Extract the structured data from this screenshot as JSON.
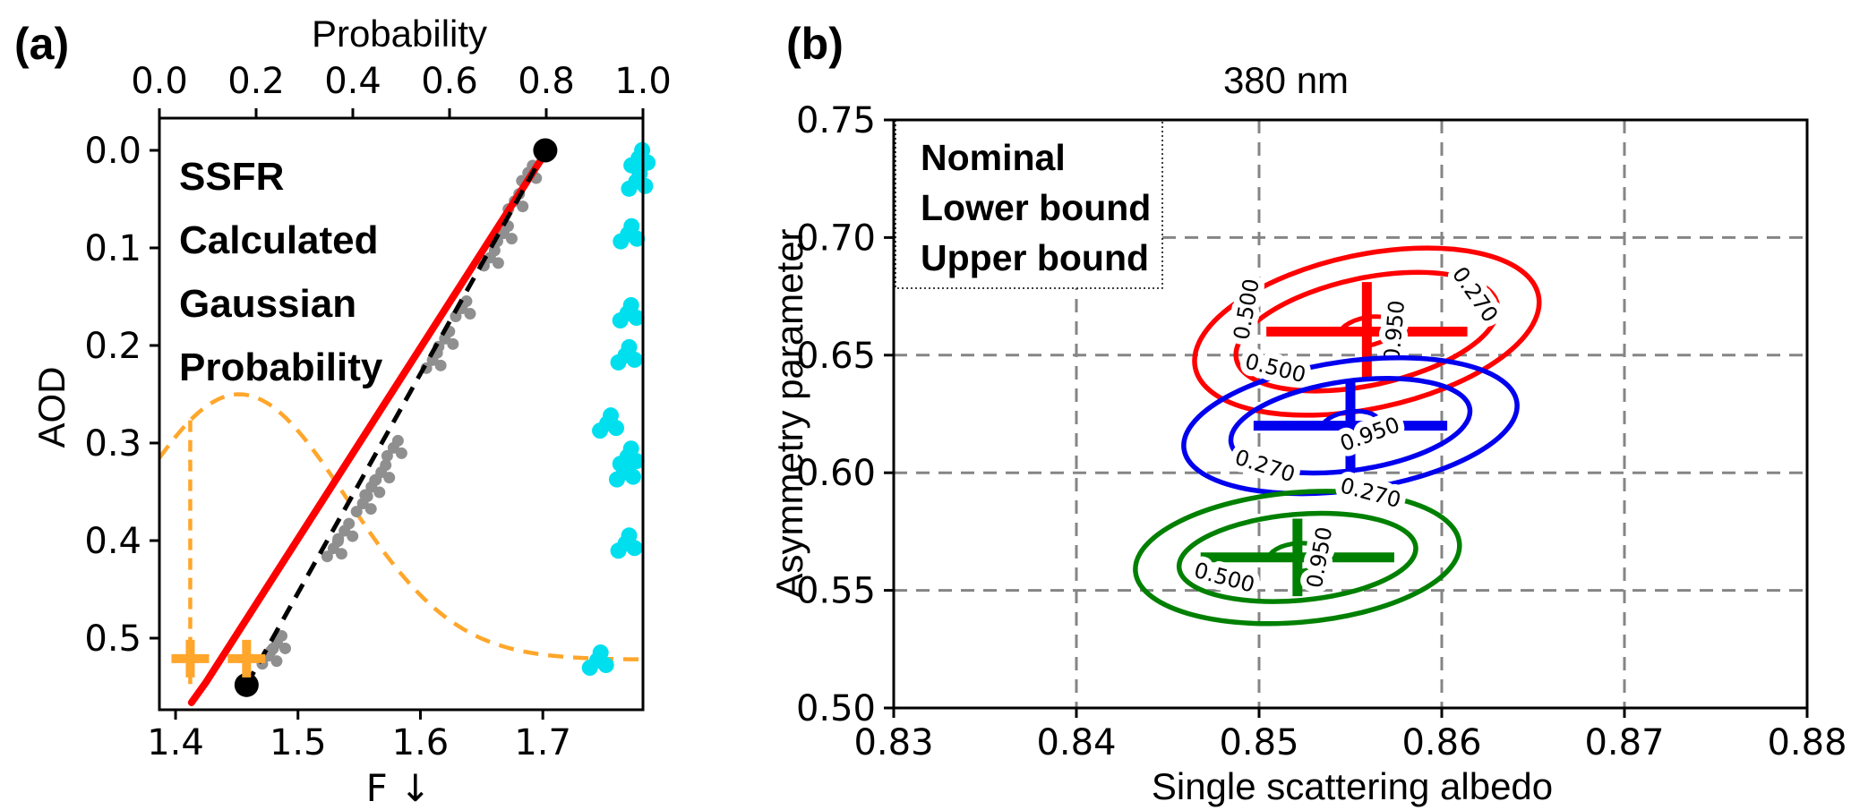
{
  "figure": {
    "panel_a_label": "(a)",
    "panel_b_label": "(b)"
  },
  "chart_data": [
    {
      "type": "line",
      "panel": "a",
      "xlabel": "F ↓",
      "top_axis_label": "Probability",
      "ylabel": "AOD",
      "x_axis": {
        "ticks": [
          "1.4",
          "1.5",
          "1.6",
          "1.7"
        ],
        "tick_values": [
          1.4,
          1.5,
          1.6,
          1.7
        ],
        "range": [
          1.3868,
          1.7818
        ]
      },
      "top_axis": {
        "ticks": [
          "0.0",
          "0.2",
          "0.4",
          "0.6",
          "0.8",
          "1.0"
        ],
        "tick_values": [
          0,
          0.2,
          0.4,
          0.6,
          0.8,
          1.0
        ],
        "range": [
          0,
          1
        ]
      },
      "y_axis": {
        "ticks": [
          "0.0",
          "0.1",
          "0.2",
          "0.3",
          "0.4",
          "0.5"
        ],
        "tick_values": [
          0,
          0.1,
          0.2,
          0.3,
          0.4,
          0.5
        ],
        "range": [
          -0.033,
          0.5734
        ],
        "inverted": true
      },
      "legend": {
        "items": [
          {
            "label": "SSFR",
            "color": "#8f8f8f"
          },
          {
            "label": "Calculated",
            "color": "#ff0000"
          },
          {
            "label": "Gaussian",
            "color": "#ff7f0e"
          },
          {
            "label": "Probability",
            "color": "#00dfee"
          }
        ]
      },
      "series": {
        "ssfr_scatter": {
          "name": "SSFR",
          "color": "#8f8f8f",
          "points": [
            [
              1.688,
              0.023
            ],
            [
              1.677,
              0.052
            ],
            [
              1.668,
              0.085
            ],
            [
              1.657,
              0.11
            ],
            [
              1.634,
              0.162
            ],
            [
              1.62,
              0.193
            ],
            [
              1.61,
              0.215
            ],
            [
              1.578,
              0.305
            ],
            [
              1.568,
              0.33
            ],
            [
              1.56,
              0.345
            ],
            [
              1.553,
              0.362
            ],
            [
              1.538,
              0.39
            ],
            [
              1.529,
              0.408
            ],
            [
              1.483,
              0.505
            ],
            [
              1.476,
              0.518
            ]
          ]
        },
        "calculated_line": {
          "name": "Calculated",
          "color": "#ff0000",
          "points": [
            [
              1.413,
              0.566
            ],
            [
              1.425,
              0.545
            ],
            [
              1.706,
              -0.005
            ]
          ]
        },
        "fit_dashed_line": {
          "name": "fit",
          "color": "#000000",
          "points": [
            [
              1.458,
              0.548
            ],
            [
              1.702,
              0.0
            ]
          ]
        },
        "endpoint_dots": {
          "color": "#000000",
          "points": [
            [
              1.458,
              0.548
            ],
            [
              1.702,
              0.0
            ]
          ]
        },
        "gaussian_curve": {
          "name": "Gaussian",
          "color": "#ffa62b",
          "baseline": 0.522,
          "amplitude": 0.272,
          "mean": 1.452,
          "sigma": 0.088
        },
        "gaussian_vline": {
          "color": "#ffa62b",
          "x": 1.412,
          "y_to": 0.547
        },
        "plus_markers": {
          "color": "#ffa62b",
          "points": [
            [
              1.412,
              0.521
            ],
            [
              1.458,
              0.521
            ]
          ]
        },
        "probability_scatter": {
          "name": "Probability",
          "color": "#00dfee",
          "points": [
            [
              0.991,
              0.008
            ],
            [
              0.986,
              0.032
            ],
            [
              0.969,
              0.086
            ],
            [
              0.968,
              0.167
            ],
            [
              0.964,
              0.21
            ],
            [
              0.926,
              0.28
            ],
            [
              0.968,
              0.314
            ],
            [
              0.961,
              0.33
            ],
            [
              0.964,
              0.403
            ],
            [
              0.905,
              0.523
            ]
          ]
        }
      }
    },
    {
      "type": "contour",
      "panel": "b",
      "title": "380 nm",
      "xlabel": "Single scattering albedo",
      "ylabel": "Asymmetry parameter",
      "x_axis": {
        "ticks": [
          "0.83",
          "0.84",
          "0.85",
          "0.86",
          "0.87",
          "0.88"
        ],
        "tick_values": [
          0.83,
          0.84,
          0.85,
          0.86,
          0.87,
          0.88
        ],
        "range": [
          0.83,
          0.88
        ]
      },
      "y_axis": {
        "ticks": [
          "0.50",
          "0.55",
          "0.60",
          "0.65",
          "0.70",
          "0.75"
        ],
        "tick_values": [
          0.5,
          0.55,
          0.6,
          0.65,
          0.7,
          0.75
        ],
        "range": [
          0.5,
          0.75
        ]
      },
      "grid": {
        "color": "#858585",
        "style": "dashed"
      },
      "legend": {
        "items": [
          {
            "label": "Nominal",
            "color": "#0000ee"
          },
          {
            "label": "Lower bound",
            "color": "#008000"
          },
          {
            "label": "Upper bound",
            "color": "#ff0000"
          }
        ]
      },
      "groups": [
        {
          "name": "Upper bound",
          "color": "#ff0000",
          "center": [
            0.8559,
            0.66
          ],
          "xerr": 0.0055,
          "yerr": 0.0211,
          "rotation": -12,
          "contours": [
            {
              "level": "0.270",
              "rx": 0.0096,
              "ry": 0.0327
            },
            {
              "level": "0.500",
              "rx": 0.0073,
              "ry": 0.0228
            },
            {
              "level": "0.950",
              "rx": 0.0016,
              "ry": 0.006
            }
          ],
          "labels": [
            {
              "text": "0.500",
              "x": 0.8497,
              "y": 0.669,
              "rot": -80
            },
            {
              "text": "0.950",
              "x": 0.8578,
              "y": 0.66,
              "rot": -85
            },
            {
              "text": "0.270",
              "x": 0.8615,
              "y": 0.674,
              "rot": 55
            }
          ]
        },
        {
          "name": "Nominal",
          "color": "#0000ee",
          "center": [
            0.855,
            0.62
          ],
          "xerr": 0.0053,
          "yerr": 0.0184,
          "rotation": -8,
          "contours": [
            {
              "level": "0.270",
              "rx": 0.0092,
              "ry": 0.0274
            },
            {
              "level": "0.500",
              "rx": 0.0066,
              "ry": 0.019
            },
            {
              "level": "0.950",
              "rx": 0.0016,
              "ry": 0.006
            }
          ],
          "labels": [
            {
              "text": "0.500",
              "x": 0.8508,
              "y": 0.6415,
              "rot": 14
            },
            {
              "text": "0.950",
              "x": 0.8562,
              "y": 0.6135,
              "rot": -20
            },
            {
              "text": "0.270",
              "x": 0.8502,
              "y": 0.6,
              "rot": 18
            }
          ]
        },
        {
          "name": "Lower bound",
          "color": "#008000",
          "center": [
            0.8521,
            0.564
          ],
          "xerr": 0.0053,
          "yerr": 0.0165,
          "rotation": -5,
          "contours": [
            {
              "level": "0.270",
              "rx": 0.0089,
              "ry": 0.0276
            },
            {
              "level": "0.500",
              "rx": 0.0065,
              "ry": 0.0183
            },
            {
              "level": "0.950",
              "rx": 0.0016,
              "ry": 0.006
            }
          ],
          "labels": [
            {
              "text": "0.270",
              "x": 0.856,
              "y": 0.5885,
              "rot": 15
            },
            {
              "text": "0.500",
              "x": 0.848,
              "y": 0.5525,
              "rot": 15
            },
            {
              "text": "0.950",
              "x": 0.8537,
              "y": 0.5635,
              "rot": -80
            }
          ]
        }
      ]
    }
  ]
}
